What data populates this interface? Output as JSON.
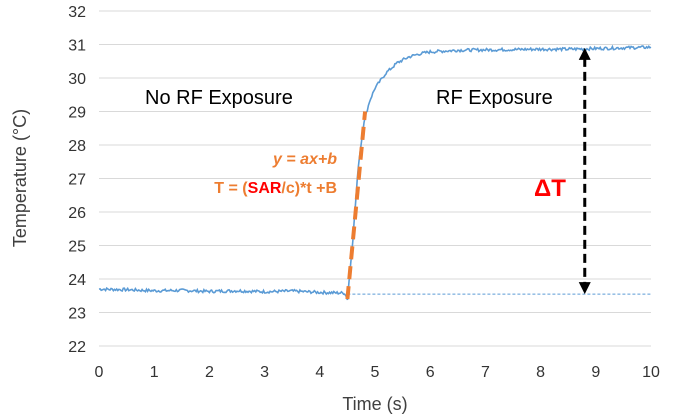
{
  "chart_data": {
    "type": "line",
    "xlabel": "Time (s)",
    "ylabel": "Temperature (°C)",
    "xlim": [
      0,
      10
    ],
    "ylim": [
      22,
      32
    ],
    "xticks": [
      "0",
      "1",
      "2",
      "3",
      "4",
      "5",
      "6",
      "7",
      "8",
      "9",
      "10"
    ],
    "yticks": [
      "22",
      "23",
      "24",
      "25",
      "26",
      "27",
      "28",
      "29",
      "30",
      "31",
      "32"
    ],
    "grid": "horizontal",
    "series": [
      {
        "color": "#5B9BD5",
        "x": [
          0,
          0.5,
          1,
          1.5,
          2,
          2.5,
          3,
          3.5,
          4,
          4.45,
          4.5,
          4.6,
          4.7,
          4.8,
          4.9,
          5.0,
          5.2,
          5.4,
          5.6,
          5.8,
          6.0,
          6.5,
          7.0,
          7.5,
          8.0,
          8.5,
          9.0,
          9.5,
          10.0
        ],
        "y": [
          23.7,
          23.68,
          23.65,
          23.66,
          23.63,
          23.65,
          23.62,
          23.64,
          23.6,
          23.58,
          23.4,
          25.2,
          27.4,
          28.7,
          29.3,
          29.7,
          30.15,
          30.45,
          30.62,
          30.72,
          30.78,
          30.83,
          30.84,
          30.85,
          30.86,
          30.86,
          30.88,
          30.9,
          30.92
        ]
      }
    ],
    "baseline": {
      "y": 23.55,
      "x_from": 4.5,
      "x_to": 10,
      "color": "#5B9BD5"
    },
    "fit_line": {
      "x": [
        4.5,
        4.82
      ],
      "y": [
        23.4,
        29.0
      ],
      "color": "#ED7D31"
    },
    "delta_arrow": {
      "x": 8.8,
      "y_from": 23.55,
      "y_to": 30.9
    },
    "annotations": {
      "no_rf": "No RF Exposure",
      "rf": "RF Exposure",
      "eq1": "y = ax+b",
      "eq2_prefix": "T = (",
      "eq2_sar": "SAR",
      "eq2_suffix": "/c)*t +B",
      "delta": "ΔT"
    },
    "colors": {
      "accent": "#ED7D31",
      "sar": "#FF0000",
      "delta": "#FF0000",
      "arrow": "#000000",
      "grid": "#D9D9D9"
    }
  }
}
